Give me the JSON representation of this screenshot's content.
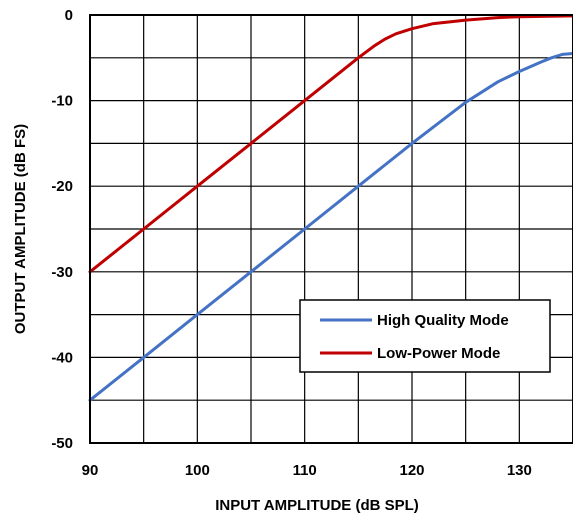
{
  "chart_data": {
    "type": "line",
    "title": "",
    "xlabel": "INPUT AMPLITUDE (dB SPL)",
    "ylabel": "OUTPUT AMPLITUDE (dB FS)",
    "xlim": [
      90,
      135
    ],
    "ylim": [
      -50,
      0
    ],
    "xticks": [
      90,
      100,
      110,
      120,
      130
    ],
    "yticks": [
      0,
      -10,
      -20,
      -30,
      -40,
      -50
    ],
    "x_minor_step": 5,
    "y_minor_step": 5,
    "grid": true,
    "legend_position": "lower-right",
    "series": [
      {
        "name": "High Quality Mode",
        "color": "#4472C4",
        "points": [
          [
            90,
            -45
          ],
          [
            95,
            -40
          ],
          [
            100,
            -35
          ],
          [
            105,
            -30
          ],
          [
            110,
            -25
          ],
          [
            115,
            -20
          ],
          [
            120,
            -15
          ],
          [
            125,
            -10.2
          ],
          [
            128,
            -7.8
          ],
          [
            130,
            -6.6
          ],
          [
            132,
            -5.5
          ],
          [
            133,
            -5.0
          ],
          [
            134,
            -4.6
          ],
          [
            135,
            -4.5
          ]
        ]
      },
      {
        "name": "Low-Power Mode",
        "color": "#C00000",
        "points": [
          [
            90,
            -30
          ],
          [
            95,
            -25
          ],
          [
            100,
            -20
          ],
          [
            105,
            -15
          ],
          [
            110,
            -10
          ],
          [
            115,
            -5
          ],
          [
            116.5,
            -3.6
          ],
          [
            117.5,
            -2.8
          ],
          [
            118.5,
            -2.2
          ],
          [
            120,
            -1.6
          ],
          [
            122,
            -1.0
          ],
          [
            125,
            -0.6
          ],
          [
            128,
            -0.3
          ],
          [
            130,
            -0.2
          ],
          [
            135,
            -0.1
          ]
        ]
      }
    ]
  }
}
